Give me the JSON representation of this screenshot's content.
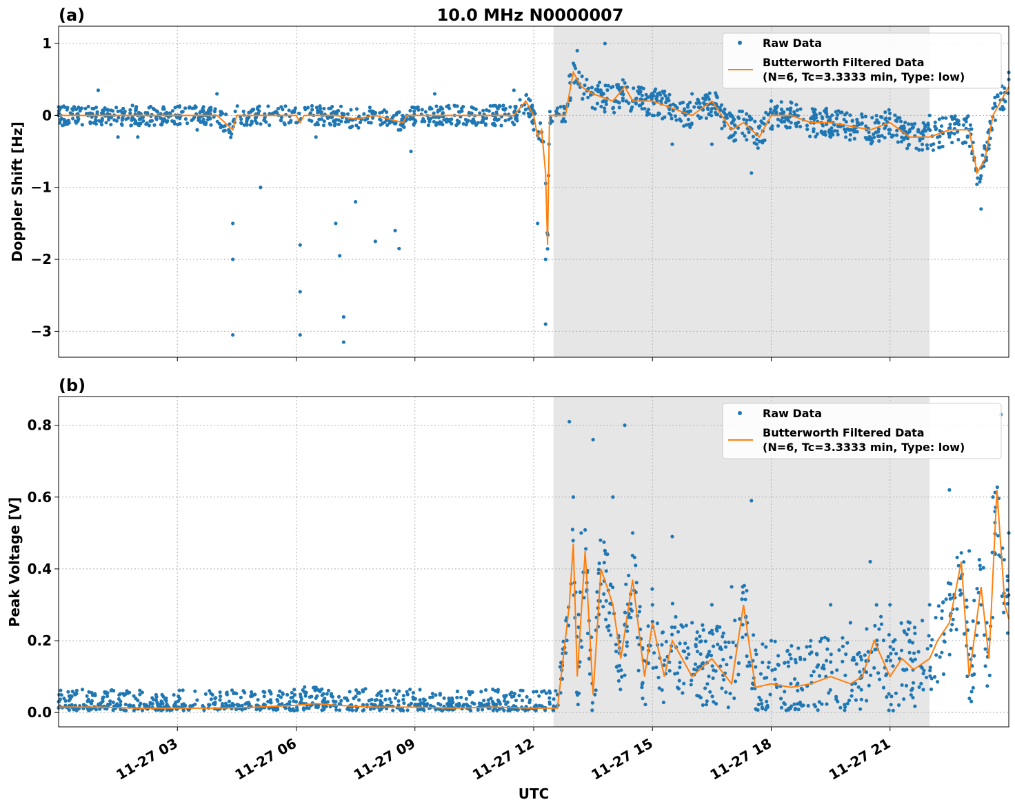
{
  "title": "10.0 MHz N0000007",
  "xlabel": "UTC",
  "x_ticks": [
    "11-27 03",
    "11-27 06",
    "11-27 09",
    "11-27 12",
    "11-27 15",
    "11-27 18",
    "11-27 21"
  ],
  "colors": {
    "raw": "#1f77b4",
    "filtered": "#ff7f0e",
    "shade": "#e6e6e6",
    "grid": "#b0b0b0"
  },
  "legend": {
    "raw_label": "Raw Data",
    "filtered_line1": "Butterworth Filtered Data",
    "filtered_line2": "(N=6, Tc=3.3333 min, Type: low)",
    "placement": "top-right"
  },
  "panels": [
    {
      "tag": "(a)",
      "ylabel": "Doppler Shift [Hz]",
      "y_ticks": [
        "1",
        "0",
        "−1",
        "−2",
        "−3"
      ]
    },
    {
      "tag": "(b)",
      "ylabel": "Peak Voltage [V]",
      "y_ticks": [
        "0.8",
        "0.6",
        "0.4",
        "0.2",
        "0.0"
      ]
    }
  ],
  "chart_data": [
    {
      "type": "scatter",
      "panel": "(a)",
      "title": "10.0 MHz N0000007",
      "xlabel": "UTC",
      "ylabel": "Doppler Shift [Hz]",
      "x_unit": "hours UTC on 11-27",
      "xlim": [
        0,
        24
      ],
      "ylim": [
        -3.36,
        1.24
      ],
      "y_tick_values": [
        1,
        0,
        -1,
        -2,
        -3
      ],
      "x_tick_values": [
        3,
        6,
        9,
        12,
        15,
        18,
        21
      ],
      "grid": true,
      "shaded_x_range": [
        12.5,
        22.0
      ],
      "legend_position": "top-right",
      "series": [
        {
          "name": "Raw Data",
          "style": "points",
          "x": [
            0.5,
            1.0,
            1.5,
            2.0,
            2.5,
            3.0,
            3.5,
            4.0,
            4.4,
            4.4,
            4.4,
            5.1,
            6.0,
            6.1,
            6.1,
            6.1,
            6.5,
            7.0,
            7.1,
            7.2,
            7.2,
            7.5,
            8.0,
            8.5,
            8.6,
            8.9,
            9.0,
            9.5,
            10.0,
            10.5,
            11.0,
            11.5,
            11.9,
            12.0,
            12.1,
            12.3,
            12.3,
            12.6,
            12.9,
            13.1,
            13.5,
            13.8,
            14.0,
            14.5,
            15.0,
            15.5,
            16.0,
            16.5,
            17.0,
            17.5,
            18.0,
            18.5,
            19.0,
            19.5,
            20.0,
            20.5,
            21.0,
            21.5,
            22.0,
            22.5,
            23.0,
            23.3,
            23.6,
            24.0
          ],
          "y": [
            0.0,
            0.35,
            -0.3,
            -0.3,
            0.05,
            0.0,
            -0.2,
            0.3,
            -1.5,
            -2.0,
            -3.05,
            -1.0,
            -0.1,
            -1.8,
            -2.45,
            -3.05,
            -0.3,
            -1.5,
            -1.95,
            -2.8,
            -3.15,
            -1.2,
            -1.75,
            -1.6,
            -1.85,
            -0.5,
            -0.1,
            0.3,
            0.0,
            -0.1,
            0.0,
            0.35,
            0.1,
            -0.2,
            -1.5,
            -2.9,
            -2.0,
            0.1,
            0.55,
            0.9,
            0.3,
            1.0,
            0.4,
            0.2,
            0.0,
            -0.4,
            0.3,
            -0.4,
            0.0,
            -0.8,
            0.2,
            -0.1,
            -0.1,
            -0.3,
            -0.2,
            -0.3,
            -0.2,
            -0.2,
            0.0,
            -0.3,
            -0.2,
            -1.3,
            0.1,
            0.5
          ]
        },
        {
          "name": "Butterworth Filtered Data (N=6, Tc=3.3333 min, Type: low)",
          "style": "line",
          "x": [
            0.0,
            1.0,
            2.0,
            3.0,
            4.0,
            4.4,
            4.5,
            5.0,
            6.0,
            6.1,
            6.2,
            7.0,
            7.5,
            8.0,
            8.7,
            8.8,
            9.0,
            10.0,
            11.0,
            11.5,
            11.8,
            12.0,
            12.1,
            12.2,
            12.3,
            12.35,
            12.4,
            12.5,
            12.8,
            13.0,
            13.2,
            13.5,
            14.0,
            14.3,
            14.5,
            15.0,
            15.5,
            16.0,
            16.5,
            17.0,
            17.3,
            17.7,
            18.0,
            18.5,
            19.0,
            19.5,
            20.0,
            20.5,
            21.0,
            21.5,
            22.0,
            22.5,
            23.0,
            23.2,
            23.4,
            23.6,
            24.0
          ],
          "y": [
            0.0,
            0.0,
            0.0,
            0.0,
            0.0,
            -0.2,
            0.0,
            0.0,
            0.0,
            -0.1,
            0.0,
            0.0,
            -0.05,
            0.0,
            -0.1,
            0.0,
            0.0,
            0.0,
            0.0,
            0.0,
            0.2,
            0.0,
            -0.3,
            -0.2,
            -0.8,
            -1.8,
            0.0,
            0.0,
            0.0,
            0.6,
            0.4,
            0.3,
            0.2,
            0.4,
            0.2,
            0.2,
            0.1,
            0.0,
            0.2,
            -0.2,
            -0.1,
            -0.3,
            0.0,
            0.0,
            -0.1,
            -0.1,
            -0.15,
            -0.2,
            -0.1,
            -0.3,
            -0.3,
            -0.2,
            -0.2,
            -0.8,
            -0.6,
            0.0,
            0.4
          ]
        }
      ]
    },
    {
      "type": "scatter",
      "panel": "(b)",
      "xlabel": "UTC",
      "ylabel": "Peak Voltage [V]",
      "x_unit": "hours UTC on 11-27",
      "xlim": [
        0,
        24
      ],
      "ylim": [
        -0.04,
        0.88
      ],
      "y_tick_values": [
        0.8,
        0.6,
        0.4,
        0.2,
        0.0
      ],
      "x_tick_values": [
        3,
        6,
        9,
        12,
        15,
        18,
        21
      ],
      "grid": true,
      "shaded_x_range": [
        12.5,
        22.0
      ],
      "legend_position": "top-right",
      "series": [
        {
          "name": "Raw Data",
          "style": "points",
          "x": [
            0.0,
            1.0,
            2.0,
            3.0,
            4.0,
            5.0,
            6.0,
            6.5,
            7.0,
            8.0,
            9.0,
            10.0,
            11.0,
            12.0,
            12.6,
            12.9,
            13.0,
            13.2,
            13.5,
            13.8,
            14.0,
            14.3,
            14.5,
            15.0,
            15.5,
            16.0,
            16.5,
            17.0,
            17.5,
            18.0,
            18.5,
            19.0,
            19.5,
            20.0,
            20.5,
            21.0,
            21.5,
            22.0,
            22.5,
            23.0,
            23.3,
            23.6,
            23.8,
            24.0
          ],
          "y": [
            0.03,
            0.02,
            0.01,
            0.01,
            0.01,
            0.02,
            0.03,
            0.04,
            0.03,
            0.02,
            0.02,
            0.01,
            0.02,
            0.01,
            0.05,
            0.81,
            0.6,
            0.5,
            0.76,
            0.45,
            0.6,
            0.8,
            0.5,
            0.3,
            0.49,
            0.25,
            0.3,
            0.35,
            0.59,
            0.2,
            0.15,
            0.2,
            0.3,
            0.25,
            0.42,
            0.3,
            0.25,
            0.3,
            0.62,
            0.45,
            0.3,
            0.6,
            0.83,
            0.5
          ]
        },
        {
          "name": "Butterworth Filtered Data (N=6, Tc=3.3333 min, Type: low)",
          "style": "line",
          "x": [
            0.0,
            1.0,
            2.0,
            3.0,
            4.0,
            5.0,
            6.0,
            6.5,
            7.0,
            8.0,
            9.0,
            10.0,
            11.0,
            12.0,
            12.6,
            12.9,
            13.0,
            13.1,
            13.3,
            13.5,
            13.7,
            14.0,
            14.2,
            14.5,
            14.8,
            15.0,
            15.3,
            15.5,
            16.0,
            16.5,
            17.0,
            17.3,
            17.6,
            18.0,
            18.5,
            19.0,
            19.5,
            20.0,
            20.3,
            20.6,
            21.0,
            21.3,
            21.6,
            22.0,
            22.2,
            22.5,
            22.8,
            23.0,
            23.3,
            23.5,
            23.7,
            23.9,
            24.0
          ],
          "y": [
            0.015,
            0.015,
            0.012,
            0.012,
            0.012,
            0.015,
            0.02,
            0.025,
            0.02,
            0.015,
            0.015,
            0.012,
            0.015,
            0.012,
            0.012,
            0.3,
            0.47,
            0.1,
            0.45,
            0.05,
            0.4,
            0.3,
            0.15,
            0.37,
            0.1,
            0.25,
            0.1,
            0.2,
            0.1,
            0.15,
            0.08,
            0.3,
            0.07,
            0.08,
            0.07,
            0.08,
            0.1,
            0.08,
            0.1,
            0.2,
            0.1,
            0.15,
            0.12,
            0.15,
            0.2,
            0.25,
            0.42,
            0.1,
            0.35,
            0.15,
            0.62,
            0.3,
            0.26
          ]
        }
      ]
    }
  ]
}
